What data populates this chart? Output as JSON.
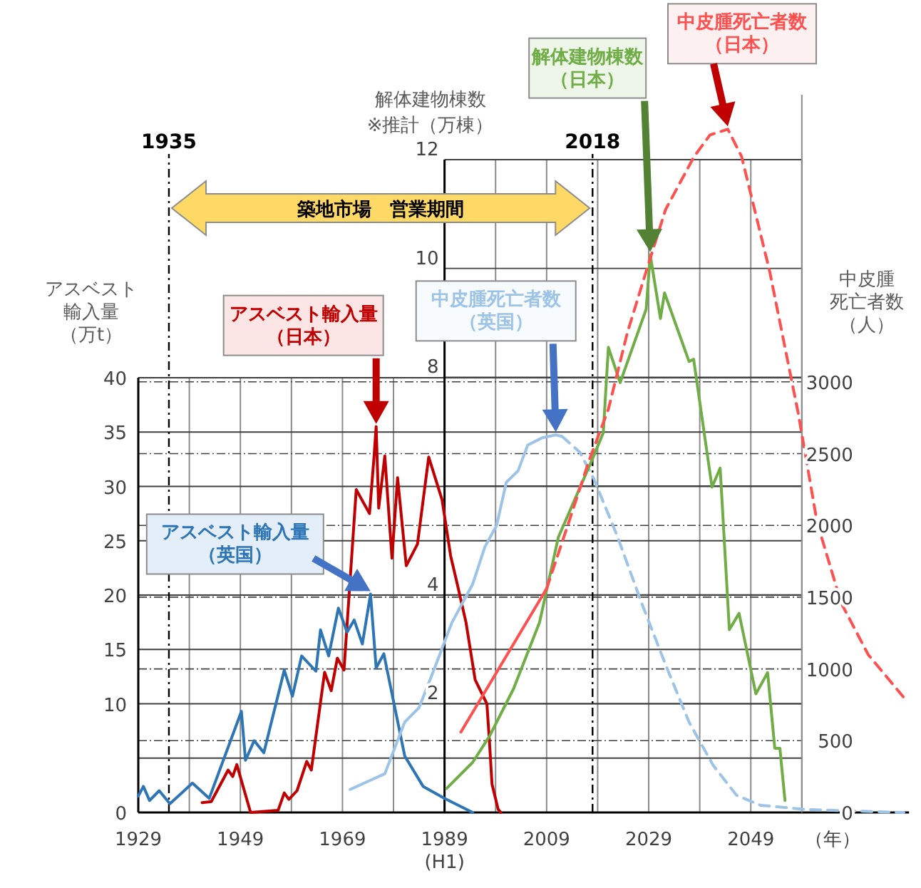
{
  "chart_data": {
    "type": "line",
    "xlabel": "（年）",
    "ylabel": "アスベスト輸入量（万t）",
    "y2label": "解体建物棟数※推計（万棟）",
    "y3label": "中皮腫死亡者数（人）",
    "xlim": [
      1929,
      2080
    ],
    "xticks": [
      1929,
      {
        "value": 1939,
        "label": null
      },
      1949,
      {
        "value": 1959,
        "label": null
      },
      1969,
      {
        "value": 1979,
        "label": null
      },
      {
        "value": 1989,
        "label": "1989\n(H1)"
      },
      {
        "value": 1999,
        "label": null
      },
      2009,
      {
        "value": 2019,
        "label": null
      },
      2029,
      {
        "value": 2039,
        "label": null
      },
      2049,
      {
        "value": 2059,
        "label": null
      }
    ],
    "ylim": [
      0,
      40
    ],
    "yticks": [
      0,
      {
        "value": 5,
        "label": null
      },
      10,
      15,
      20,
      25,
      30,
      35,
      40
    ],
    "y2lim": [
      0,
      12
    ],
    "y2ticks": [
      {
        "value": 0,
        "label": null
      },
      2,
      4,
      {
        "value": 6,
        "label": null
      },
      8,
      10,
      12
    ],
    "y3lim": [
      0,
      5000
    ],
    "y3ticks": [
      0,
      500,
      1000,
      1500,
      2000,
      2500,
      3000
    ],
    "grid": true,
    "ref_lines": [
      {
        "axis": "x",
        "value": 1935,
        "label": "1935"
      },
      {
        "axis": "x",
        "value": 2018,
        "label": "2018"
      }
    ],
    "annotations": [
      "築地市場　営業期間"
    ],
    "series": [
      {
        "name": "アスベスト輸入量（日本）",
        "color": "#c00000",
        "x": [
          1941.5,
          1943.3,
          1946.6,
          1947.5,
          1948.3,
          1951,
          1956.4,
          1957.6,
          1958.5,
          1960.1,
          1962,
          1962.9,
          1965.5,
          1966.8,
          1968,
          1969.3,
          1971.7,
          1974.3,
          1975.2,
          1975.6,
          1976.1,
          1977.3,
          1978.7,
          1979.8,
          1981.5,
          1983.7,
          1985.9,
          1988.5,
          1990.2,
          1991.5,
          1993.2,
          1995,
          1997.3,
          1997.8,
          1998.3,
          1999.5,
          2000
        ],
        "values": [
          0.9,
          1.0,
          3.9,
          3.3,
          4.4,
          0,
          0.2,
          1.8,
          1.2,
          2.0,
          4.7,
          3.9,
          12.9,
          11.2,
          14.2,
          13.1,
          29.7,
          27.5,
          32.8,
          35.5,
          28,
          32.8,
          23.4,
          30.8,
          22.7,
          24.7,
          32.7,
          28.8,
          23.6,
          21,
          17.5,
          12.2,
          10,
          6.5,
          2.6,
          0.3,
          0
        ]
      },
      {
        "name": "アスベスト輸入量（英国）",
        "color": "#2e75b6",
        "x": [
          1929,
          1930,
          1931.2,
          1933.1,
          1935.2,
          1939.6,
          1942.9,
          1949.2,
          1950,
          1951.7,
          1953.6,
          1957.6,
          1959.2,
          1961,
          1963.8,
          1964.7,
          1966.3,
          1968.2,
          1969.9,
          1971.3,
          1972.9,
          1974.5,
          1975.6,
          1977.1,
          1981.2,
          1984.8,
          1989,
          1994.5
        ],
        "values": [
          1.5,
          2.4,
          1.1,
          2.0,
          0.8,
          2.7,
          1.3,
          9.3,
          4.8,
          6.6,
          5.5,
          13.1,
          10.7,
          14.4,
          13.0,
          16.8,
          14.4,
          18.8,
          16.6,
          17.7,
          15.5,
          20.1,
          13.3,
          14.6,
          5.2,
          2.4,
          1.3,
          0
        ]
      },
      {
        "name": "中皮腫死亡者数（英国）",
        "color": "#9dc3e6",
        "axis": "y3",
        "x": [
          1970.5,
          1977.3,
          1981.2,
          1984,
          1987,
          1990.4,
          1994.5,
          1996.9,
          1999.2,
          2001.1,
          2003.4,
          2005.3,
          2008.1,
          2010.8,
          2012
        ],
        "values": [
          160,
          270,
          630,
          730,
          1000,
          1320,
          1590,
          1850,
          2000,
          2300,
          2380,
          2560,
          2610,
          2630,
          2620
        ]
      },
      {
        "color": "#9dc3e6",
        "axis": "y3",
        "line_style": "dashed",
        "x": [
          2012,
          2015.5,
          2018.3,
          2022.9,
          2027.6,
          2032.3,
          2036.9,
          2041.6,
          2046.2,
          2050.9,
          2060,
          2079
        ],
        "values": [
          2620,
          2510,
          2320,
          1920,
          1460,
          1030,
          630,
          330,
          120,
          50,
          20,
          0
        ]
      },
      {
        "name": "解体建物棟数（日本）",
        "color": "#70ad47",
        "axis": "y2",
        "x": [
          1989.4,
          1994.5,
          1997.8,
          2002.5,
          2007.6,
          2011.3,
          2017.8,
          2020.1,
          2021.1,
          2023.4,
          2028.5,
          2029.3,
          2031.3,
          2032.1,
          2036.9,
          2037.8,
          2041.4,
          2043,
          2044.8,
          2046.7,
          2050,
          2052.3,
          2053.7,
          2054.7,
          2055.7
        ],
        "values": [
          0.44,
          0.92,
          1.4,
          2.27,
          3.49,
          5.06,
          6.46,
          6.98,
          8.55,
          7.9,
          9.25,
          10.25,
          9.08,
          9.55,
          8.29,
          8.33,
          5.98,
          6.33,
          3.36,
          3.66,
          2.18,
          2.57,
          1.18,
          1.18,
          0.22
        ]
      },
      {
        "color": "#ff5050",
        "axis": "y3",
        "x": [
          1992.2,
          2009
        ],
        "values": [
          560,
          1560
        ]
      },
      {
        "name": "中皮腫死亡者数（日本）",
        "color": "#ff5050",
        "axis": "y3",
        "line_style": "dashed",
        "x": [
          2009,
          2013.6,
          2017.3,
          2021.1,
          2024.8,
          2028.5,
          2032.3,
          2037.9,
          2041,
          2044.5,
          2047.2,
          2052.7,
          2058.3,
          2062,
          2066.7,
          2072,
          2079
        ],
        "values": [
          1560,
          2050,
          2450,
          2810,
          3340,
          3770,
          4200,
          4570,
          4720,
          4760,
          4570,
          3770,
          2780,
          2020,
          1460,
          1100,
          800
        ]
      }
    ]
  }
}
